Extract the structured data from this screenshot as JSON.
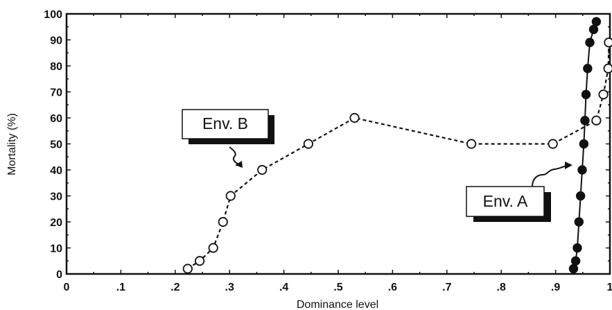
{
  "chart_data": {
    "type": "line",
    "xlabel": "Dominance level",
    "ylabel": "Mortality (%)",
    "xlim": [
      0,
      1
    ],
    "ylim": [
      0,
      100
    ],
    "x_tick_labels": [
      "0",
      ".1",
      ".2",
      ".3",
      ".4",
      ".5",
      ".6",
      ".7",
      ".8",
      ".9",
      "1"
    ],
    "y_tick_labels": [
      "0",
      "10",
      "20",
      "30",
      "40",
      "50",
      "60",
      "70",
      "80",
      "90",
      "100"
    ],
    "grid": false,
    "series": [
      {
        "name": "Env. B",
        "style": "dashed",
        "marker": "open-circle",
        "points": [
          [
            0.223,
            2
          ],
          [
            0.245,
            5
          ],
          [
            0.27,
            10
          ],
          [
            0.288,
            20
          ],
          [
            0.302,
            30
          ],
          [
            0.36,
            40
          ],
          [
            0.445,
            50
          ],
          [
            0.53,
            60
          ],
          [
            0.745,
            50
          ],
          [
            0.895,
            50
          ],
          [
            0.975,
            59
          ],
          [
            0.988,
            69
          ],
          [
            0.997,
            79
          ],
          [
            0.998,
            89
          ]
        ]
      },
      {
        "name": "Env. A",
        "style": "solid",
        "marker": "filled-circle",
        "points": [
          [
            0.933,
            2
          ],
          [
            0.937,
            5
          ],
          [
            0.94,
            10
          ],
          [
            0.943,
            20
          ],
          [
            0.946,
            30
          ],
          [
            0.949,
            40
          ],
          [
            0.952,
            50
          ],
          [
            0.954,
            59
          ],
          [
            0.956,
            69
          ],
          [
            0.959,
            79
          ],
          [
            0.963,
            89
          ],
          [
            0.97,
            94
          ],
          [
            0.975,
            97
          ]
        ]
      }
    ],
    "annotations": [
      "Env. B",
      "Env. A"
    ]
  }
}
